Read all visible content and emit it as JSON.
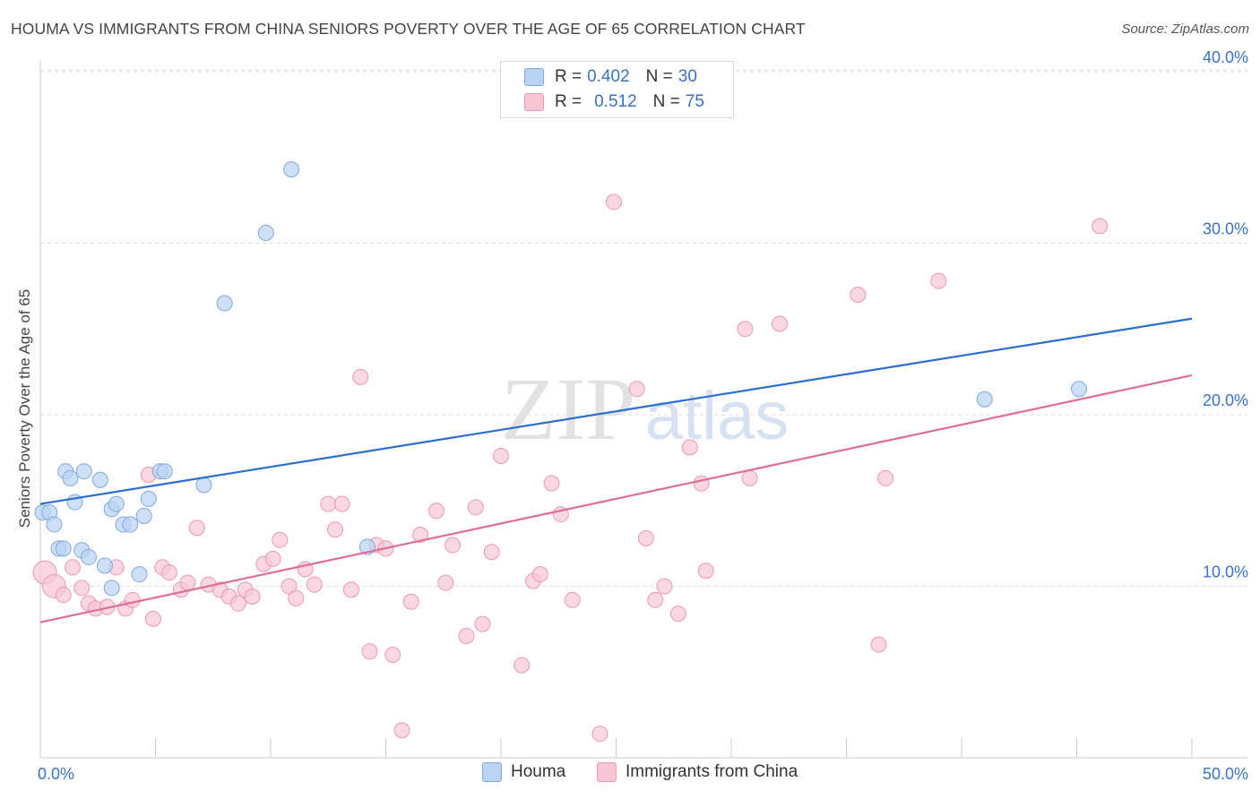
{
  "title": "HOUMA VS IMMIGRANTS FROM CHINA SENIORS POVERTY OVER THE AGE OF 65 CORRELATION CHART",
  "source": "Source: ZipAtlas.com",
  "watermark": {
    "zip": "ZIP",
    "atlas": "atlas"
  },
  "legend": {
    "rows": [
      {
        "r_label": "R =",
        "r_value": "0.402",
        "n_label": "N =",
        "n_value": "30"
      },
      {
        "r_label": "R =",
        "r_value": "0.512",
        "n_label": "N =",
        "n_value": "75"
      }
    ]
  },
  "colors": {
    "houma_fill": "#b9d3f3",
    "houma_stroke": "#7fa9e0",
    "houma_line": "#2a6fd0",
    "china_fill": "#f8c6d5",
    "china_stroke": "#eb9ab4",
    "china_line": "#e06c98",
    "tick_text": "#3a72c4",
    "grid": "#dddddd"
  },
  "chart_data": {
    "type": "scatter",
    "title": "HOUMA VS IMMIGRANTS FROM CHINA SENIORS POVERTY OVER THE AGE OF 65 CORRELATION CHART",
    "xlabel": "",
    "ylabel": "Seniors Poverty Over the Age of 65",
    "xlim": [
      0,
      50
    ],
    "ylim": [
      0,
      40
    ],
    "x_tick_labels": [
      "0.0%",
      "50.0%"
    ],
    "y_ticks": [
      10,
      20,
      30,
      40
    ],
    "y_tick_labels": [
      "10.0%",
      "20.0%",
      "30.0%",
      "40.0%"
    ],
    "legend_position": "top-center",
    "series": [
      {
        "name": "Houma",
        "r": 0.402,
        "n": 30,
        "trend": {
          "x0": 0,
          "y0": 14.8,
          "x1": 50,
          "y1": 25.6
        },
        "points": [
          [
            0.1,
            14.3
          ],
          [
            0.4,
            14.3
          ],
          [
            0.6,
            13.6
          ],
          [
            0.8,
            12.2
          ],
          [
            1.0,
            12.2
          ],
          [
            1.1,
            16.7
          ],
          [
            1.3,
            16.3
          ],
          [
            1.5,
            14.9
          ],
          [
            1.8,
            12.1
          ],
          [
            1.9,
            16.7
          ],
          [
            2.1,
            11.7
          ],
          [
            2.6,
            16.2
          ],
          [
            2.8,
            11.2
          ],
          [
            3.1,
            14.5
          ],
          [
            3.1,
            9.9
          ],
          [
            3.3,
            14.8
          ],
          [
            3.6,
            13.6
          ],
          [
            3.9,
            13.6
          ],
          [
            4.3,
            10.7
          ],
          [
            4.5,
            14.1
          ],
          [
            4.7,
            15.1
          ],
          [
            5.2,
            16.7
          ],
          [
            5.4,
            16.7
          ],
          [
            7.1,
            15.9
          ],
          [
            8.0,
            26.5
          ],
          [
            9.8,
            30.6
          ],
          [
            10.9,
            34.3
          ],
          [
            14.2,
            12.3
          ],
          [
            41.0,
            20.9
          ],
          [
            45.1,
            21.5
          ]
        ]
      },
      {
        "name": "Immigrants from China",
        "r": 0.512,
        "n": 75,
        "trend": {
          "x0": 0,
          "y0": 7.9,
          "x1": 50,
          "y1": 22.3
        },
        "points": [
          [
            0.2,
            10.8
          ],
          [
            0.6,
            10.0
          ],
          [
            1.0,
            9.5
          ],
          [
            1.4,
            11.1
          ],
          [
            1.8,
            9.9
          ],
          [
            2.1,
            9.0
          ],
          [
            2.4,
            8.7
          ],
          [
            2.9,
            8.8
          ],
          [
            3.3,
            11.1
          ],
          [
            3.7,
            8.7
          ],
          [
            4.0,
            9.2
          ],
          [
            4.7,
            16.5
          ],
          [
            4.9,
            8.1
          ],
          [
            5.3,
            11.1
          ],
          [
            5.6,
            10.8
          ],
          [
            6.1,
            9.8
          ],
          [
            6.4,
            10.2
          ],
          [
            6.8,
            13.4
          ],
          [
            7.3,
            10.1
          ],
          [
            7.8,
            9.8
          ],
          [
            8.2,
            9.4
          ],
          [
            8.6,
            9.0
          ],
          [
            8.9,
            9.8
          ],
          [
            9.2,
            9.4
          ],
          [
            9.7,
            11.3
          ],
          [
            10.1,
            11.6
          ],
          [
            10.4,
            12.7
          ],
          [
            10.8,
            10.0
          ],
          [
            11.1,
            9.3
          ],
          [
            11.5,
            11.0
          ],
          [
            11.9,
            10.1
          ],
          [
            12.5,
            14.8
          ],
          [
            12.8,
            13.3
          ],
          [
            13.1,
            14.8
          ],
          [
            13.5,
            9.8
          ],
          [
            13.9,
            22.2
          ],
          [
            14.3,
            6.2
          ],
          [
            14.6,
            12.4
          ],
          [
            15.0,
            12.2
          ],
          [
            15.3,
            6.0
          ],
          [
            15.7,
            1.6
          ],
          [
            16.1,
            9.1
          ],
          [
            16.5,
            13.0
          ],
          [
            17.2,
            14.4
          ],
          [
            17.6,
            10.2
          ],
          [
            17.9,
            12.4
          ],
          [
            18.5,
            7.1
          ],
          [
            18.9,
            14.6
          ],
          [
            19.2,
            7.8
          ],
          [
            19.6,
            12.0
          ],
          [
            20.0,
            17.6
          ],
          [
            20.9,
            5.4
          ],
          [
            21.4,
            10.3
          ],
          [
            21.7,
            10.7
          ],
          [
            22.2,
            16.0
          ],
          [
            22.6,
            14.2
          ],
          [
            23.1,
            9.2
          ],
          [
            24.3,
            1.4
          ],
          [
            24.9,
            32.4
          ],
          [
            25.9,
            21.5
          ],
          [
            26.3,
            12.8
          ],
          [
            26.7,
            9.2
          ],
          [
            27.1,
            10.0
          ],
          [
            27.7,
            8.4
          ],
          [
            28.2,
            18.1
          ],
          [
            28.7,
            16.0
          ],
          [
            28.9,
            10.9
          ],
          [
            30.6,
            25.0
          ],
          [
            30.8,
            16.3
          ],
          [
            32.1,
            25.3
          ],
          [
            35.5,
            27.0
          ],
          [
            36.4,
            6.6
          ],
          [
            36.7,
            16.3
          ],
          [
            39.0,
            27.8
          ],
          [
            46.0,
            31.0
          ]
        ]
      }
    ]
  },
  "bottom_legend": {
    "houma": "Houma",
    "china": "Immigrants from China"
  }
}
